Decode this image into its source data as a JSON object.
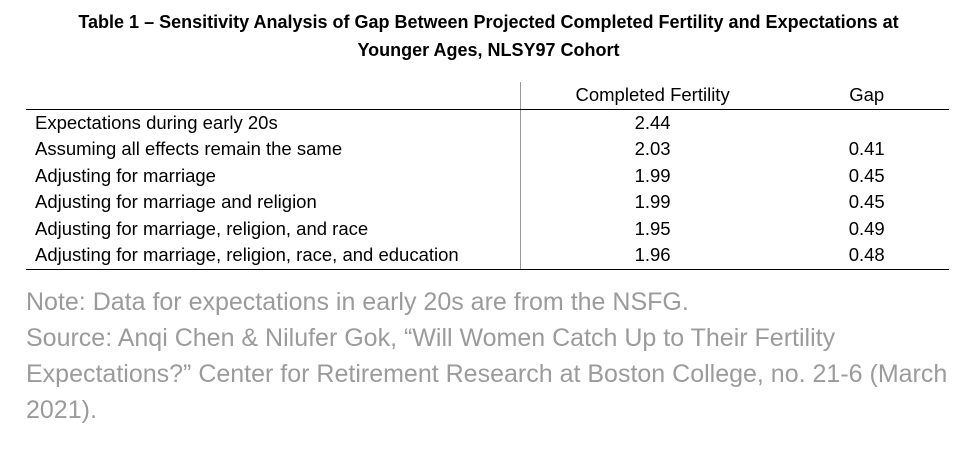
{
  "title": {
    "line1": "Table 1 – Sensitivity Analysis of Gap Between Projected Completed Fertility and Expectations at",
    "line2": "Younger Ages, NLSY97 Cohort"
  },
  "table": {
    "headers": [
      "",
      "Completed Fertility",
      "Gap"
    ],
    "rows": [
      {
        "label": "Expectations during early 20s",
        "completed_fertility": "2.44",
        "gap": ""
      },
      {
        "label": "Assuming all effects remain the same",
        "completed_fertility": "2.03",
        "gap": "0.41"
      },
      {
        "label": "Adjusting for marriage",
        "completed_fertility": "1.99",
        "gap": "0.45"
      },
      {
        "label": "Adjusting for marriage and religion",
        "completed_fertility": "1.99",
        "gap": "0.45"
      },
      {
        "label": "Adjusting for marriage, religion, and race",
        "completed_fertility": "1.95",
        "gap": "0.49"
      },
      {
        "label": "Adjusting for marriage, religion, race, and education",
        "completed_fertility": "1.96",
        "gap": "0.48"
      }
    ]
  },
  "notes": {
    "note": "Note: Data for expectations in early 20s are from the NSFG.",
    "source": "Source: Anqi Chen & Nilufer Gok, “Will Women Catch Up to Their Fertility Expectations?” Center for Retirement Research at Boston College, no. 21-6 (March 2021)."
  }
}
